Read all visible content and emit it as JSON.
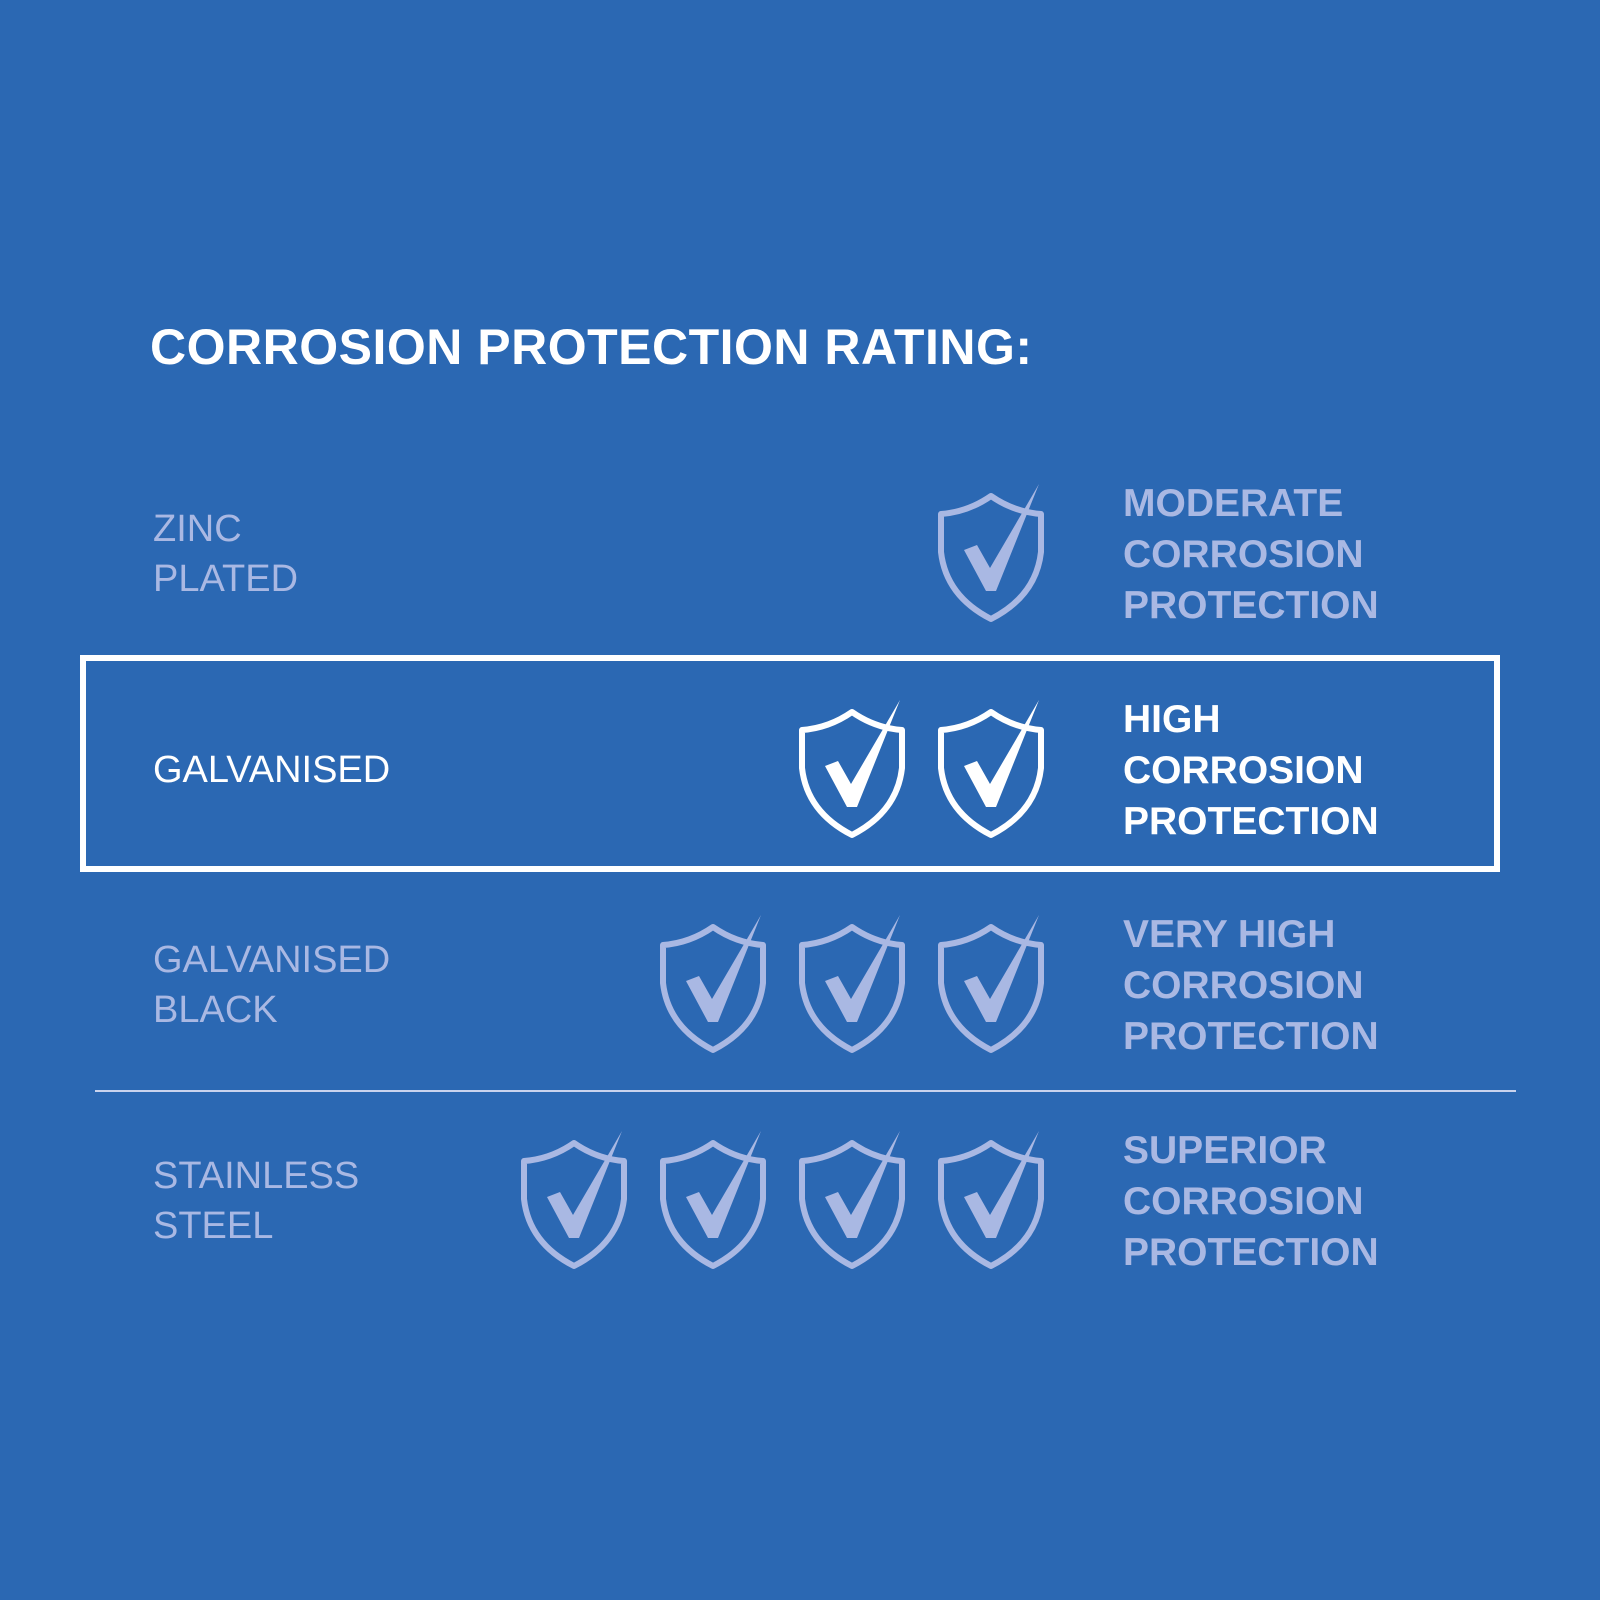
{
  "title": "CORROSION PROTECTION RATING:",
  "colors": {
    "background": "#2b68b3",
    "muted": "#a9b8e3",
    "highlight": "#ffffff"
  },
  "rows": [
    {
      "name": [
        "ZINC",
        "PLATED"
      ],
      "rating_lines": [
        "MODERATE",
        "CORROSION",
        "PROTECTION"
      ],
      "shields": 1,
      "icon": "shield-check-icon",
      "highlighted": false
    },
    {
      "name": [
        "GALVANISED",
        ""
      ],
      "rating_lines": [
        "HIGH",
        "CORROSION",
        "PROTECTION"
      ],
      "shields": 2,
      "icon": "shield-check-icon",
      "highlighted": true
    },
    {
      "name": [
        "GALVANISED",
        "BLACK"
      ],
      "rating_lines": [
        "VERY HIGH",
        "CORROSION",
        "PROTECTION"
      ],
      "shields": 3,
      "icon": "shield-check-icon",
      "highlighted": false
    },
    {
      "name": [
        "STAINLESS",
        "STEEL"
      ],
      "rating_lines": [
        "SUPERIOR",
        "CORROSION",
        "PROTECTION"
      ],
      "shields": 4,
      "icon": "shield-check-icon",
      "highlighted": false
    }
  ]
}
